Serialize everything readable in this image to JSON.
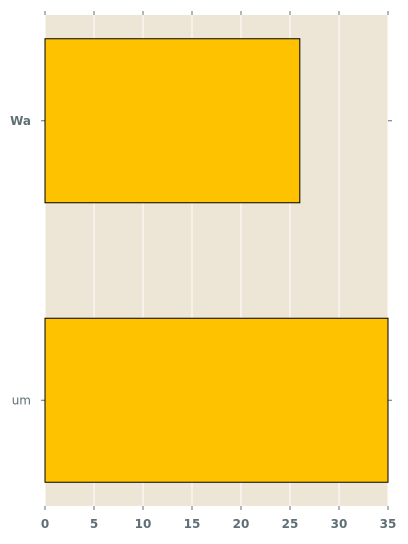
{
  "chart_data": {
    "type": "bar",
    "orientation": "horizontal",
    "categories": [
      "Wa",
      "um"
    ],
    "values": [
      26,
      35
    ],
    "xlim": [
      0,
      35
    ],
    "x_ticks": [
      "0",
      "5",
      "10",
      "15",
      "20",
      "25",
      "30",
      "35"
    ],
    "title": "",
    "xlabel": "",
    "ylabel": "",
    "grid": "vertical",
    "legend": "none"
  },
  "colors": {
    "plot_background": "#ede6d6",
    "bar_fill": "#ffc200",
    "bar_edge": "#000000",
    "grid": "#ffffff",
    "tick_text": "#5f6f75"
  }
}
